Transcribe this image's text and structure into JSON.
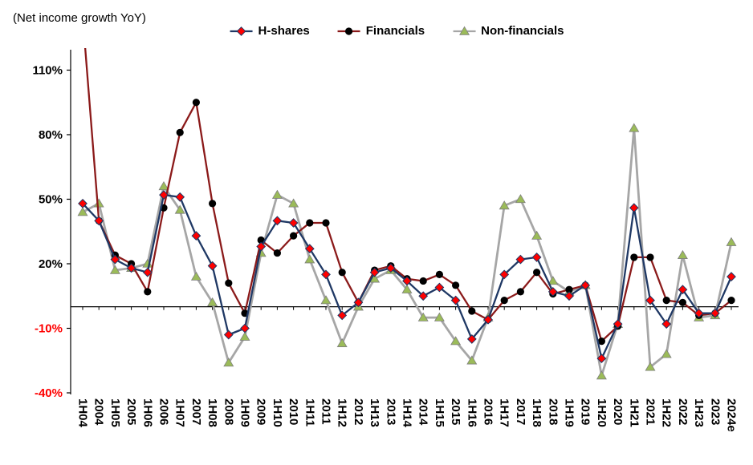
{
  "chart_data": {
    "type": "line",
    "title": "(Net income growth YoY)",
    "categories": [
      "1H04",
      "2004",
      "1H05",
      "2005",
      "1H06",
      "2006",
      "1H07",
      "2007",
      "1H08",
      "2008",
      "1H09",
      "2009",
      "1H10",
      "2010",
      "1H11",
      "2011",
      "1H12",
      "2012",
      "1H13",
      "2013",
      "1H14",
      "2014",
      "1H15",
      "2015",
      "1H16",
      "2016",
      "1H17",
      "2017",
      "1H18",
      "2018",
      "1H19",
      "2019",
      "1H20",
      "2020",
      "1H21",
      "2021",
      "1H22",
      "2022",
      "1H23",
      "2023",
      "2024e"
    ],
    "y_ticks": [
      110,
      80,
      50,
      20,
      -10,
      -40
    ],
    "y_tick_labels": [
      "110%",
      "80%",
      "50%",
      "20%",
      "-10%",
      "-40%"
    ],
    "ylim": [
      -40,
      118
    ],
    "grid": false,
    "legend_position": "top",
    "axis_color": "#000000",
    "negative_tick_color": "#ff0000",
    "series": [
      {
        "name": "H-shares",
        "marker": "diamond",
        "marker_color": "#ff0000",
        "line_color": "#1F3864",
        "line_width": 2.3,
        "values": [
          48,
          40,
          22,
          18,
          16,
          52,
          51,
          33,
          19,
          -13,
          -10,
          28,
          40,
          39,
          27,
          15,
          -4,
          2,
          16,
          18,
          12,
          5,
          9,
          3,
          -15,
          -6,
          15,
          22,
          23,
          7,
          5,
          10,
          -24,
          -8,
          46,
          3,
          -8,
          8,
          -3,
          -3,
          14
        ]
      },
      {
        "name": "Financials",
        "marker": "circle",
        "marker_color": "#000000",
        "line_color": "#8B1A1A",
        "line_width": 2.3,
        "values": [
          135,
          40,
          24,
          20,
          7,
          46,
          81,
          95,
          48,
          11,
          -3,
          31,
          25,
          33,
          39,
          39,
          16,
          2,
          17,
          19,
          13,
          12,
          15,
          10,
          -2,
          -6,
          3,
          7,
          16,
          6,
          8,
          10,
          -16,
          -9,
          23,
          23,
          3,
          2,
          -4,
          -3,
          3
        ]
      },
      {
        "name": "Non-financials",
        "marker": "triangle",
        "marker_color": "#9BBB59",
        "line_color": "#A6A6A6",
        "line_width": 2.8,
        "values": [
          44,
          48,
          17,
          18,
          20,
          56,
          45,
          14,
          2,
          -26,
          -14,
          25,
          52,
          48,
          22,
          3,
          -17,
          0,
          13,
          17,
          8,
          -5,
          -5,
          -16,
          -25,
          -5,
          47,
          50,
          33,
          12,
          7,
          10,
          -32,
          -8,
          83,
          -28,
          -22,
          24,
          -5,
          -4,
          30
        ]
      }
    ]
  }
}
